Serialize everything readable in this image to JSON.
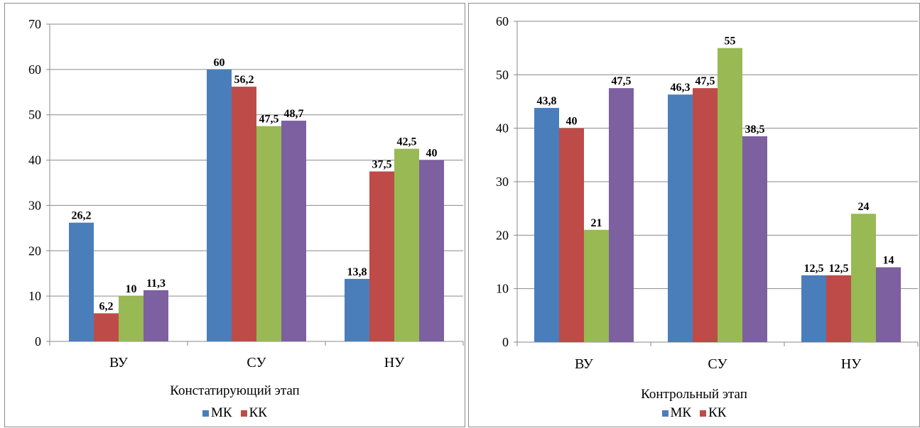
{
  "chart_data": [
    {
      "type": "bar",
      "title": "Констатирующий этап",
      "categories": [
        "ВУ",
        "СУ",
        "НУ"
      ],
      "ylim": [
        0,
        70
      ],
      "yticks": [
        0,
        10,
        20,
        30,
        40,
        50,
        60,
        70
      ],
      "grid": true,
      "legend_position": "bottom",
      "legend": [
        "МК",
        "КК"
      ],
      "series": [
        {
          "name": "МК",
          "color": "#4A7EBB",
          "values": [
            26.2,
            60,
            13.8
          ],
          "labels": [
            "26,2",
            "60",
            "13,8"
          ]
        },
        {
          "name": "КК",
          "color": "#BE4B48",
          "values": [
            6.2,
            56.2,
            37.5
          ],
          "labels": [
            "6,2",
            "56,2",
            "37,5"
          ]
        },
        {
          "color": "#98B954",
          "values": [
            10,
            47.5,
            42.5
          ],
          "labels": [
            "10",
            "47,5",
            "42,5"
          ]
        },
        {
          "color": "#7D60A0",
          "values": [
            11.3,
            48.7,
            40
          ],
          "labels": [
            "11,3",
            "48,7",
            "40"
          ]
        }
      ]
    },
    {
      "type": "bar",
      "title": "Контрольный этап",
      "categories": [
        "ВУ",
        "СУ",
        "НУ"
      ],
      "ylim": [
        0,
        60
      ],
      "yticks": [
        0,
        10,
        20,
        30,
        40,
        50,
        60
      ],
      "grid": true,
      "legend_position": "bottom",
      "legend": [
        "МК",
        "КК"
      ],
      "series": [
        {
          "name": "МК",
          "color": "#4A7EBB",
          "values": [
            43.8,
            46.3,
            12.5
          ],
          "labels": [
            "43,8",
            "46,3",
            "12,5"
          ]
        },
        {
          "name": "КК",
          "color": "#BE4B48",
          "values": [
            40,
            47.5,
            12.5
          ],
          "labels": [
            "40",
            "47,5",
            "12,5"
          ]
        },
        {
          "color": "#98B954",
          "values": [
            21,
            55,
            24
          ],
          "labels": [
            "21",
            "55",
            "24"
          ]
        },
        {
          "color": "#7D60A0",
          "values": [
            47.5,
            38.5,
            14
          ],
          "labels": [
            "47,5",
            "38,5",
            "14"
          ]
        }
      ]
    }
  ]
}
